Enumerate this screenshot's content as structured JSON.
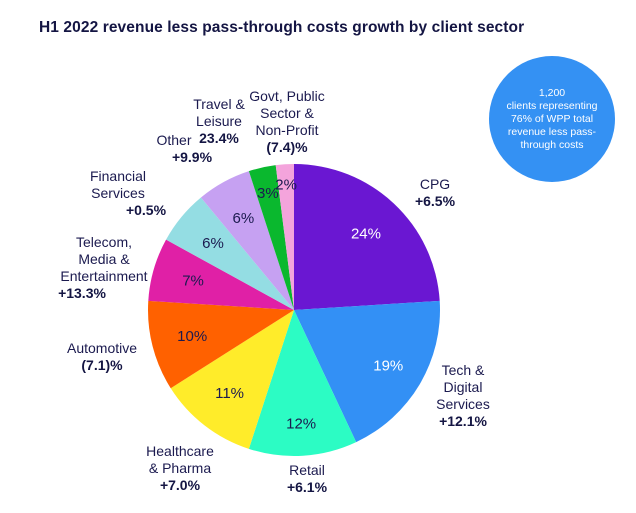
{
  "header": {
    "title": "H1 2022 revenue less pass-through costs growth by client sector"
  },
  "callout": {
    "lines": [
      "1,200",
      "clients representing",
      "76% of WPP total",
      "revenue less pass-",
      "through costs"
    ]
  },
  "chart_data": {
    "type": "pie",
    "title": "H1 2022 revenue less pass-through costs growth by client sector",
    "start_angle": "top (12 o'clock)",
    "direction": "clockwise",
    "slices": [
      {
        "name": "CPG",
        "label_lines": [
          "CPG"
        ],
        "value": 24,
        "value_label": "24%",
        "growth": "+6.5%",
        "color": "#6a17d2",
        "pct_color": "#ffffff"
      },
      {
        "name": "Tech & Digital Services",
        "label_lines": [
          "Tech &",
          "Digital",
          "Services"
        ],
        "value": 19,
        "value_label": "19%",
        "growth": "+12.1%",
        "color": "#3390f5",
        "pct_color": "#ffffff"
      },
      {
        "name": "Retail",
        "label_lines": [
          "Retail"
        ],
        "value": 12,
        "value_label": "12%",
        "growth": "+6.1%",
        "color": "#2cfcc4",
        "pct_color": "#1b1a4f"
      },
      {
        "name": "Healthcare & Pharma",
        "label_lines": [
          "Healthcare",
          "& Pharma"
        ],
        "value": 11,
        "value_label": "11%",
        "growth": "+7.0%",
        "color": "#ffec2a",
        "pct_color": "#1b1a4f"
      },
      {
        "name": "Automotive",
        "label_lines": [
          "Automotive"
        ],
        "value": 10,
        "value_label": "10%",
        "growth": "(7.1)%",
        "color": "#ff6100",
        "pct_color": "#1b1a4f"
      },
      {
        "name": "Telecom, Media & Entertainment",
        "label_lines": [
          "Telecom,",
          "Media &",
          "Entertainment"
        ],
        "value": 7,
        "value_label": "7%",
        "growth": "+13.3%",
        "color": "#e020a6",
        "pct_color": "#1b1a4f"
      },
      {
        "name": "Financial Services",
        "label_lines": [
          "Financial",
          "Services"
        ],
        "value": 6,
        "value_label": "6%",
        "growth": "+0.5%",
        "color": "#94dde3",
        "pct_color": "#1b1a4f"
      },
      {
        "name": "Other",
        "label_lines": [
          "Other"
        ],
        "value": 6,
        "value_label": "6%",
        "growth": "+9.9%",
        "color": "#c6a1f2",
        "pct_color": "#1b1a4f"
      },
      {
        "name": "Travel & Leisure",
        "label_lines": [
          "Travel &",
          "Leisure"
        ],
        "value": 3,
        "value_label": "3%",
        "growth": "23.4%",
        "color": "#0ab82e",
        "pct_color": "#1b1a4f"
      },
      {
        "name": "Govt, Public Sector & Non-Profit",
        "label_lines": [
          "Govt, Public",
          "Sector &",
          "Non-Profit"
        ],
        "value": 2,
        "value_label": "2%",
        "growth": "(7.4)%",
        "color": "#f4a4dc",
        "pct_color": "#1b1a4f"
      }
    ]
  }
}
